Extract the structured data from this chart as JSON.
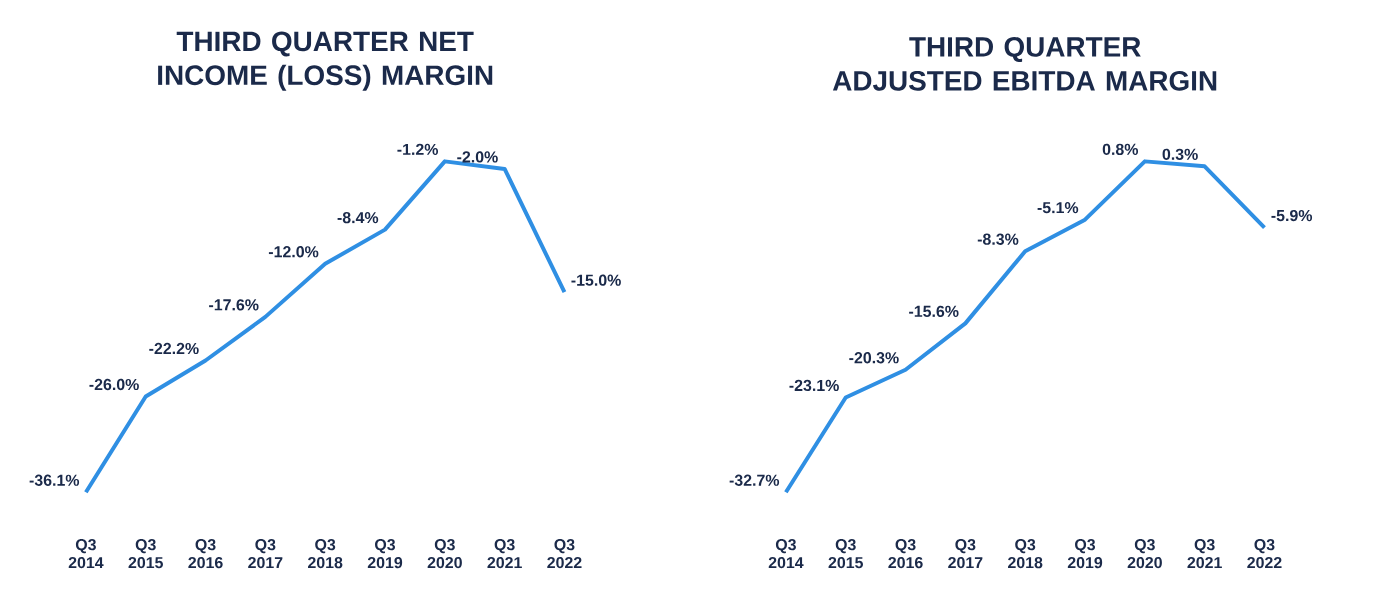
{
  "chart_data": [
    {
      "type": "line",
      "title": "THIRD QUARTER NET INCOME (LOSS) MARGIN",
      "categories": [
        "Q3 2014",
        "Q3 2015",
        "Q3 2016",
        "Q3 2017",
        "Q3 2018",
        "Q3 2019",
        "Q3 2020",
        "Q3 2021",
        "Q3 2022"
      ],
      "series": [
        {
          "color": "#2f8fe3",
          "values": [
            -36.1,
            -26.0,
            -22.2,
            -17.6,
            -12.0,
            -8.4,
            -1.2,
            -2.0,
            -15.0
          ],
          "value_labels": [
            "-36.1%",
            "-26.0%",
            "-22.2%",
            "-17.6%",
            "-12.0%",
            "-8.4%",
            "-1.2%",
            "-2.0%",
            "-15.0%"
          ]
        }
      ],
      "tick_labels": "x",
      "marker": "none"
    },
    {
      "type": "line",
      "title": "THIRD QUARTER ADJUSTED EBITDA MARGIN",
      "categories": [
        "Q3 2014",
        "Q3 2015",
        "Q3 2016",
        "Q3 2017",
        "Q3 2018",
        "Q3 2019",
        "Q3 2020",
        "Q3 2021",
        "Q3 2022"
      ],
      "series": [
        {
          "color": "#2f8fe3",
          "values": [
            -32.7,
            -23.1,
            -20.3,
            -15.6,
            -8.3,
            -5.1,
            0.8,
            0.3,
            -5.9
          ],
          "value_labels": [
            "-32.7%",
            "-23.1%",
            "-20.3%",
            "-15.6%",
            "-8.3%",
            "-5.1%",
            "0.8%",
            "0.3%",
            "-5.9%"
          ]
        }
      ],
      "tick_labels": "x",
      "marker": "none"
    }
  ]
}
